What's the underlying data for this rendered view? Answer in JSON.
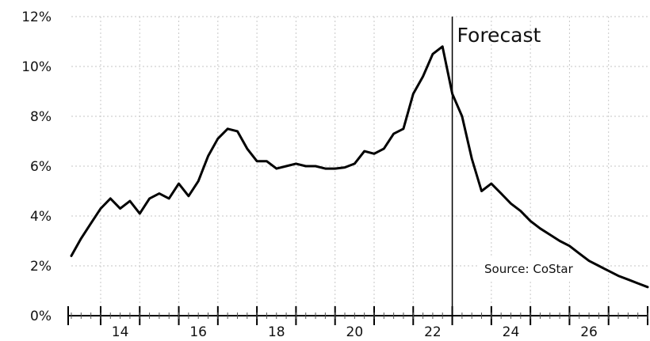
{
  "chart_data": {
    "type": "line",
    "title": "",
    "xlabel": "",
    "ylabel": "",
    "xlim": [
      12.75,
      27.5
    ],
    "ylim": [
      0,
      12
    ],
    "yticks": [
      0,
      2,
      4,
      6,
      8,
      10,
      12
    ],
    "ytick_labels": [
      "0%",
      "2%",
      "4%",
      "6%",
      "8%",
      "10%",
      "12%"
    ],
    "xticks": [
      14,
      16,
      18,
      20,
      22,
      24,
      26
    ],
    "xtick_labels": [
      "14",
      "16",
      "18",
      "20",
      "22",
      "24",
      "26"
    ],
    "grid": true,
    "forecast_start": 22.5,
    "series": [
      {
        "x": [
          12.75,
          13.0,
          13.25,
          13.5,
          13.75,
          14.0,
          14.25,
          14.5,
          14.75,
          15.0,
          15.25,
          15.5,
          15.75,
          16.0,
          16.25,
          16.5,
          16.75,
          17.0,
          17.25,
          17.5,
          17.75,
          18.0,
          18.25,
          18.5,
          18.75,
          19.0,
          19.25,
          19.5,
          19.75,
          20.0,
          20.25,
          20.5,
          20.75,
          21.0,
          21.25,
          21.5,
          21.75,
          22.0,
          22.25,
          22.5,
          22.75,
          23.0,
          23.25,
          23.5,
          23.75,
          24.0,
          24.25,
          24.5,
          24.75,
          25.0,
          25.25,
          25.5,
          25.75,
          26.0,
          26.25,
          26.5,
          26.75,
          27.0,
          27.25,
          27.5
        ],
        "values": [
          2.4,
          3.1,
          3.7,
          4.3,
          4.7,
          4.3,
          4.6,
          4.1,
          4.7,
          4.9,
          4.7,
          5.3,
          4.8,
          5.4,
          6.4,
          7.1,
          7.5,
          7.4,
          6.7,
          6.2,
          6.2,
          5.9,
          6.0,
          6.1,
          6.0,
          6.0,
          5.9,
          5.9,
          5.95,
          6.1,
          6.6,
          6.5,
          6.7,
          7.3,
          7.5,
          8.9,
          9.6,
          10.5,
          10.8,
          8.9,
          8.0,
          6.3,
          5.0,
          5.3,
          4.9,
          4.5,
          4.2,
          3.8,
          3.5,
          3.25,
          3.0,
          2.8,
          2.5,
          2.2,
          2.0,
          1.8,
          1.6,
          1.45,
          1.3,
          1.15
        ]
      }
    ],
    "annotations": {
      "forecast": "Forecast",
      "source": "Source: CoStar"
    }
  }
}
